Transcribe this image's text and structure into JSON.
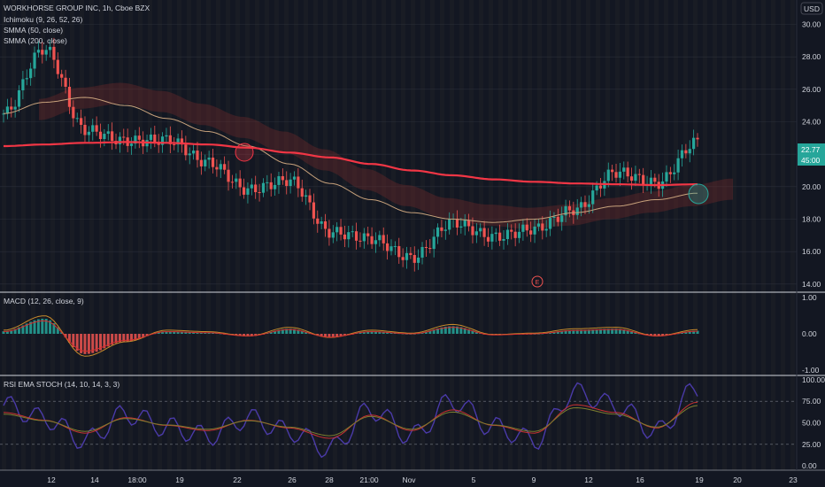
{
  "colors": {
    "background": "#131722",
    "grid": "#2a2e39",
    "up": "#26a69a",
    "down": "#ef5350",
    "smma50": "#c8a27c",
    "smma200": "#f23645",
    "cloud_bull": "#2e6b4f",
    "cloud_bear": "#7a2b2b",
    "macd_line": "#c88a2c",
    "signal_line": "#d32f2f",
    "rsi_line": "#4a3aa8",
    "stoch_line": "#c83232",
    "stoch_d": "#7d7d2f",
    "session_shade": "#2a2a2a"
  },
  "header": {
    "currency": "USD",
    "legend": [
      "WORKHORSE GROUP INC, 1h, Cboe BZX",
      "Ichimoku (9, 26, 52, 26)",
      "SMMA (50, close)",
      "SMMA (200, close)"
    ]
  },
  "price_pane": {
    "y_ticks": [
      "30.00",
      "28.00",
      "26.00",
      "24.00",
      "22.00",
      "20.00",
      "18.00",
      "16.00",
      "14.00"
    ],
    "ylim": [
      13.5,
      31.5
    ],
    "last_price": "22.77",
    "countdown": "45:00",
    "earnings_marker": "E"
  },
  "macd_pane": {
    "title": "MACD (12, 26, close, 9)",
    "y_ticks": [
      "1.00",
      "0.00",
      "-1.00"
    ],
    "ylim": [
      -1.15,
      1.15
    ]
  },
  "rsi_pane": {
    "title": "RSI EMA STOCH (14, 10, 14, 3, 3)",
    "y_ticks": [
      "100.00",
      "75.00",
      "50.00",
      "25.00",
      "0.00"
    ],
    "ylim": [
      -5,
      105
    ]
  },
  "x_axis": {
    "ticks": [
      "12",
      "14",
      "18:00",
      "19",
      "22",
      "26",
      "28",
      "21:00",
      "Nov",
      "5",
      "9",
      "12",
      "16",
      "19",
      "20",
      "23"
    ]
  },
  "chart_data": {
    "type": "line",
    "title": "WORKHORSE GROUP INC, 1h, Cboe BZX",
    "series": [
      {
        "name": "SMMA (200, close)",
        "values": [
          22.5,
          22.6,
          22.7,
          22.75,
          22.7,
          22.6,
          22.4,
          22.1,
          21.8,
          21.4,
          21.0,
          20.7,
          20.45,
          20.3,
          20.2,
          20.15,
          20.1,
          20.15
        ]
      },
      {
        "name": "SMMA (50, close)",
        "values": [
          24.5,
          25.2,
          25.5,
          25.0,
          24.2,
          23.4,
          22.5,
          21.4,
          20.2,
          19.2,
          18.4,
          18.0,
          17.8,
          18.0,
          18.4,
          18.8,
          19.2,
          19.6
        ]
      },
      {
        "name": "WORKHORSE GROUP INC",
        "values": [
          24.5,
          28.5,
          23.5,
          22.8,
          22.9,
          21.5,
          19.8,
          20.4,
          17.2,
          16.8,
          15.6,
          17.8,
          16.9,
          17.4,
          18.6,
          20.9,
          20.2,
          22.77
        ]
      }
    ],
    "macd": [
      0.1,
      0.6,
      -0.8,
      -0.3,
      0.1,
      0.05,
      -0.1,
      0.2,
      -0.15,
      0.1,
      0.0,
      0.3,
      -0.05,
      0.0,
      0.15,
      0.2,
      -0.1,
      0.12
    ],
    "rsi_stoch": [
      70,
      55,
      30,
      60,
      45,
      35,
      55,
      40,
      20,
      65,
      35,
      75,
      45,
      30,
      85,
      70,
      40,
      90
    ]
  }
}
